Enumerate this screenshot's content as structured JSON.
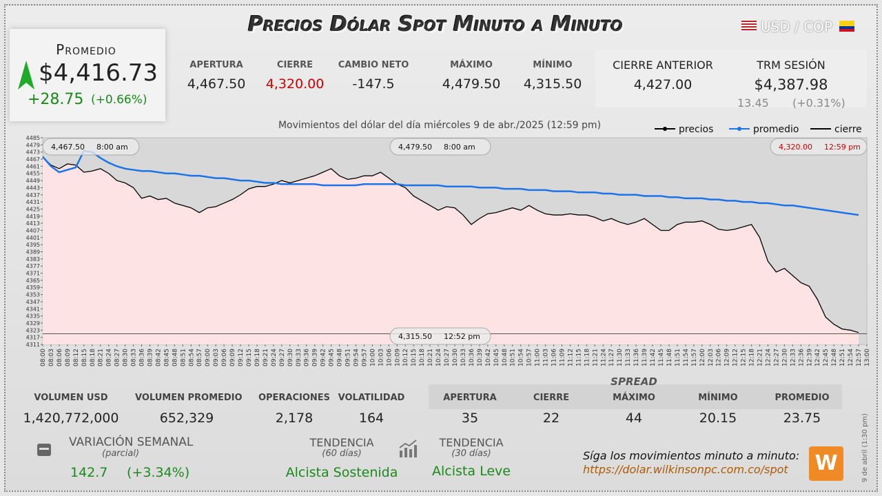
{
  "header": {
    "title": "Precios Dólar Spot Minuto a Minuto",
    "pair": "USD / COP"
  },
  "promedio": {
    "label": "Promedio",
    "value": "$4,416.73",
    "change": "+28.75",
    "change_pct": "(+0.66%)"
  },
  "stats": [
    {
      "label": "APERTURA",
      "value": "4,467.50"
    },
    {
      "label": "CIERRE",
      "value": "4,320.00"
    },
    {
      "label": "CAMBIO NETO",
      "value": "-147.5"
    },
    {
      "label": "MÁXIMO",
      "value": "4,479.50"
    },
    {
      "label": "MÍNIMO",
      "value": "4,315.50"
    }
  ],
  "previous": {
    "label": "CIERRE ANTERIOR",
    "value": "4,427.00"
  },
  "trm": {
    "label": "TRM SESIÓN",
    "value": "$4,387.98",
    "change": "13.45",
    "change_pct": "(+0.31%)"
  },
  "chart_data": {
    "type": "line",
    "subtitle": "Movimientos del dólar del día miércoles 9 de abr./2025 (12:59 pm)",
    "categories": [
      "08:00",
      "08:03",
      "08:06",
      "08:09",
      "08:12",
      "08:15",
      "08:18",
      "08:21",
      "08:24",
      "08:27",
      "08:30",
      "08:33",
      "08:36",
      "08:39",
      "08:42",
      "08:45",
      "08:48",
      "08:51",
      "08:54",
      "08:57",
      "09:00",
      "09:03",
      "09:06",
      "09:09",
      "09:12",
      "09:15",
      "09:18",
      "09:21",
      "09:24",
      "09:27",
      "09:30",
      "09:33",
      "09:36",
      "09:39",
      "09:42",
      "09:45",
      "09:48",
      "09:51",
      "09:54",
      "09:57",
      "10:00",
      "10:03",
      "10:06",
      "10:09",
      "10:12",
      "10:15",
      "10:18",
      "10:21",
      "10:24",
      "10:27",
      "10:30",
      "10:33",
      "10:36",
      "10:39",
      "10:42",
      "10:45",
      "10:48",
      "10:51",
      "10:54",
      "10:57",
      "11:00",
      "11:03",
      "11:06",
      "11:09",
      "11:12",
      "11:15",
      "11:18",
      "11:21",
      "11:24",
      "11:27",
      "11:30",
      "11:33",
      "11:36",
      "11:39",
      "11:42",
      "11:45",
      "11:48",
      "11:51",
      "11:54",
      "11:57",
      "12:00",
      "12:03",
      "12:06",
      "12:09",
      "12:12",
      "12:15",
      "12:18",
      "12:21",
      "12:24",
      "12:27",
      "12:30",
      "12:33",
      "12:36",
      "12:39",
      "12:42",
      "12:45",
      "12:48",
      "12:51",
      "12:54",
      "12:57",
      "13:00"
    ],
    "series": [
      {
        "name": "precios",
        "color": "#000000",
        "values": [
          4469,
          4462,
          4459,
          4463,
          4462,
          4456,
          4457,
          4459,
          4455,
          4449,
          4447,
          4443,
          4434,
          4436,
          4433,
          4434,
          4430,
          4428,
          4426,
          4422,
          4426,
          4427,
          4430,
          4433,
          4437,
          4442,
          4444,
          4444,
          4446,
          4449,
          4447,
          4449,
          4451,
          4453,
          4456,
          4459,
          4453,
          4450,
          4451,
          4453,
          4453,
          4456,
          4451,
          4446,
          4443,
          4436,
          4432,
          4428,
          4424,
          4427,
          4426,
          4420,
          4412,
          4417,
          4421,
          4422,
          4424,
          4426,
          4424,
          4428,
          4424,
          4421,
          4420,
          4420,
          4421,
          4420,
          4420,
          4418,
          4415,
          4417,
          4414,
          4412,
          4414,
          4417,
          4412,
          4407,
          4407,
          4412,
          4414,
          4414,
          4415,
          4412,
          4408,
          4407,
          4408,
          4410,
          4412,
          4401,
          4381,
          4372,
          4375,
          4369,
          4363,
          4360,
          4349,
          4334,
          4328,
          4324,
          4323,
          4321,
          null
        ]
      },
      {
        "name": "promedio",
        "color": "#1a73e8",
        "values": [
          4469,
          4461,
          4456,
          4458,
          4460,
          4474,
          4473,
          4468,
          4464,
          4461,
          4459,
          4458,
          4457,
          4457,
          4456,
          4455,
          4455,
          4454,
          4453,
          4453,
          4452,
          4451,
          4451,
          4450,
          4449,
          4449,
          4448,
          4447,
          4447,
          4446,
          4446,
          4446,
          4446,
          4446,
          4445,
          4445,
          4445,
          4445,
          4445,
          4446,
          4446,
          4446,
          4446,
          4446,
          4445,
          4445,
          4445,
          4445,
          4445,
          4444,
          4444,
          4444,
          4444,
          4443,
          4443,
          4443,
          4442,
          4442,
          4442,
          4441,
          4441,
          4441,
          4440,
          4440,
          4440,
          4439,
          4439,
          4439,
          4438,
          4438,
          4437,
          4437,
          4437,
          4436,
          4436,
          4436,
          4435,
          4435,
          4434,
          4434,
          4434,
          4433,
          4433,
          4432,
          4432,
          4431,
          4431,
          4430,
          4430,
          4429,
          4428,
          4428,
          4427,
          4426,
          4425,
          4424,
          4423,
          4422,
          4421,
          4420,
          null
        ]
      }
    ],
    "close_name": "cierre",
    "close": 4320,
    "annotations": [
      {
        "value": "4,467.50",
        "time": "8:00 am"
      },
      {
        "value": "4,479.50",
        "time": "8:00 am"
      },
      {
        "value": "4,320.00",
        "time": "12:59 pm"
      },
      {
        "value": "4,315.50",
        "time": "12:52 pm"
      }
    ],
    "ylim": [
      4311,
      4485
    ],
    "yticks": [
      4311,
      4317,
      4323,
      4329,
      4335,
      4341,
      4347,
      4353,
      4359,
      4365,
      4371,
      4377,
      4383,
      4389,
      4395,
      4401,
      4407,
      4413,
      4419,
      4425,
      4431,
      4437,
      4443,
      4449,
      4455,
      4461,
      4467,
      4473,
      4479,
      4485
    ]
  },
  "volume": [
    {
      "label": "VOLUMEN USD",
      "value": "1,420,772,000"
    },
    {
      "label": "VOLUMEN PROMEDIO",
      "value": "652,329"
    },
    {
      "label": "OPERACIONES",
      "value": "2,178"
    },
    {
      "label": "VOLATILIDAD",
      "value": "164"
    }
  ],
  "spread": {
    "title": "SPREAD",
    "items": [
      {
        "label": "APERTURA",
        "value": "35"
      },
      {
        "label": "CIERRE",
        "value": "22"
      },
      {
        "label": "MÁXIMO",
        "value": "44"
      },
      {
        "label": "MÍNIMO",
        "value": "20.15"
      },
      {
        "label": "PROMEDIO",
        "value": "23.75"
      }
    ]
  },
  "weekly": {
    "label": "VARIACIÓN SEMANAL",
    "sub": "(parcial)",
    "value": "142.7",
    "pct": "(+3.34%)"
  },
  "trend60": {
    "label": "TENDENCIA",
    "sub": "(60 días)",
    "value": "Alcista Sostenida"
  },
  "trend30": {
    "label": "TENDENCIA",
    "sub": "(30 días)",
    "value": "Alcista Leve"
  },
  "footer": {
    "text": "Síga los movimientos minuto a minuto:",
    "url": "https://dolar.wilkinsonpc.com.co/spot",
    "date": "9 de abril (1:30 pm)"
  }
}
